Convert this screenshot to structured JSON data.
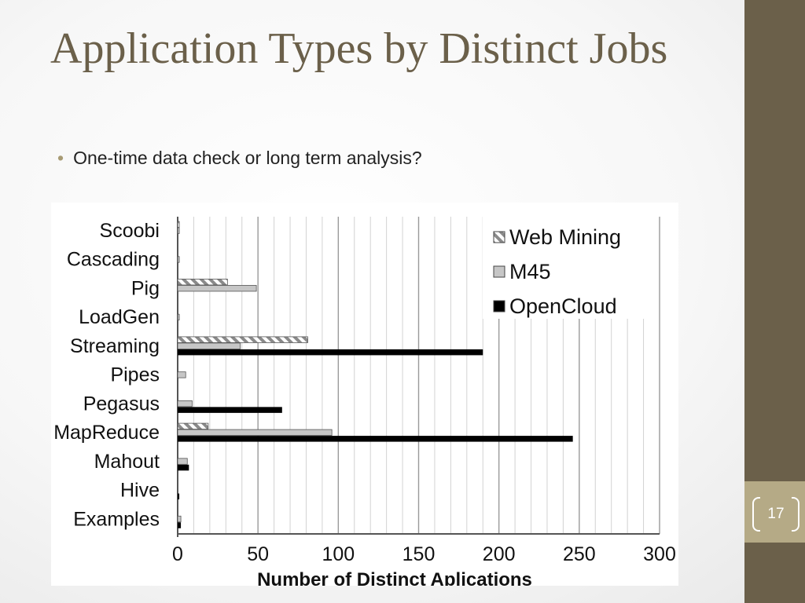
{
  "slide": {
    "title": "Application Types by Distinct Jobs",
    "bullets": [
      "One-time data check or long term analysis?"
    ],
    "page_number": "17",
    "accent_color": "#6b604a",
    "badge_color": "#b5aa86"
  },
  "chart_data": {
    "type": "bar",
    "orientation": "horizontal",
    "categories": [
      "Scoobi",
      "Cascading",
      "Pig",
      "LoadGen",
      "Streaming",
      "Pipes",
      "Pegasus",
      "MapReduce",
      "Mahout",
      "Hive",
      "Examples"
    ],
    "series": [
      {
        "name": "Web Mining",
        "style": "hatched",
        "color": "#9a9a9a",
        "values": [
          1,
          0,
          31,
          0,
          81,
          0,
          0,
          19,
          0,
          0,
          0
        ]
      },
      {
        "name": "M45",
        "style": "gray",
        "color": "#c6c6c6",
        "values": [
          1,
          1,
          49,
          1,
          39,
          5,
          9,
          96,
          6,
          0,
          2
        ]
      },
      {
        "name": "OpenCloud",
        "style": "black",
        "color": "#000000",
        "values": [
          0,
          0,
          0,
          0,
          190,
          0,
          65,
          246,
          7,
          1,
          2
        ]
      }
    ],
    "title": "",
    "xlabel": "Number of Distinct Aplications",
    "ylabel": "",
    "xlim": [
      0,
      300
    ],
    "xticks": [
      0,
      50,
      100,
      150,
      200,
      250,
      300
    ],
    "grid": true,
    "legend_position": "top-right"
  }
}
